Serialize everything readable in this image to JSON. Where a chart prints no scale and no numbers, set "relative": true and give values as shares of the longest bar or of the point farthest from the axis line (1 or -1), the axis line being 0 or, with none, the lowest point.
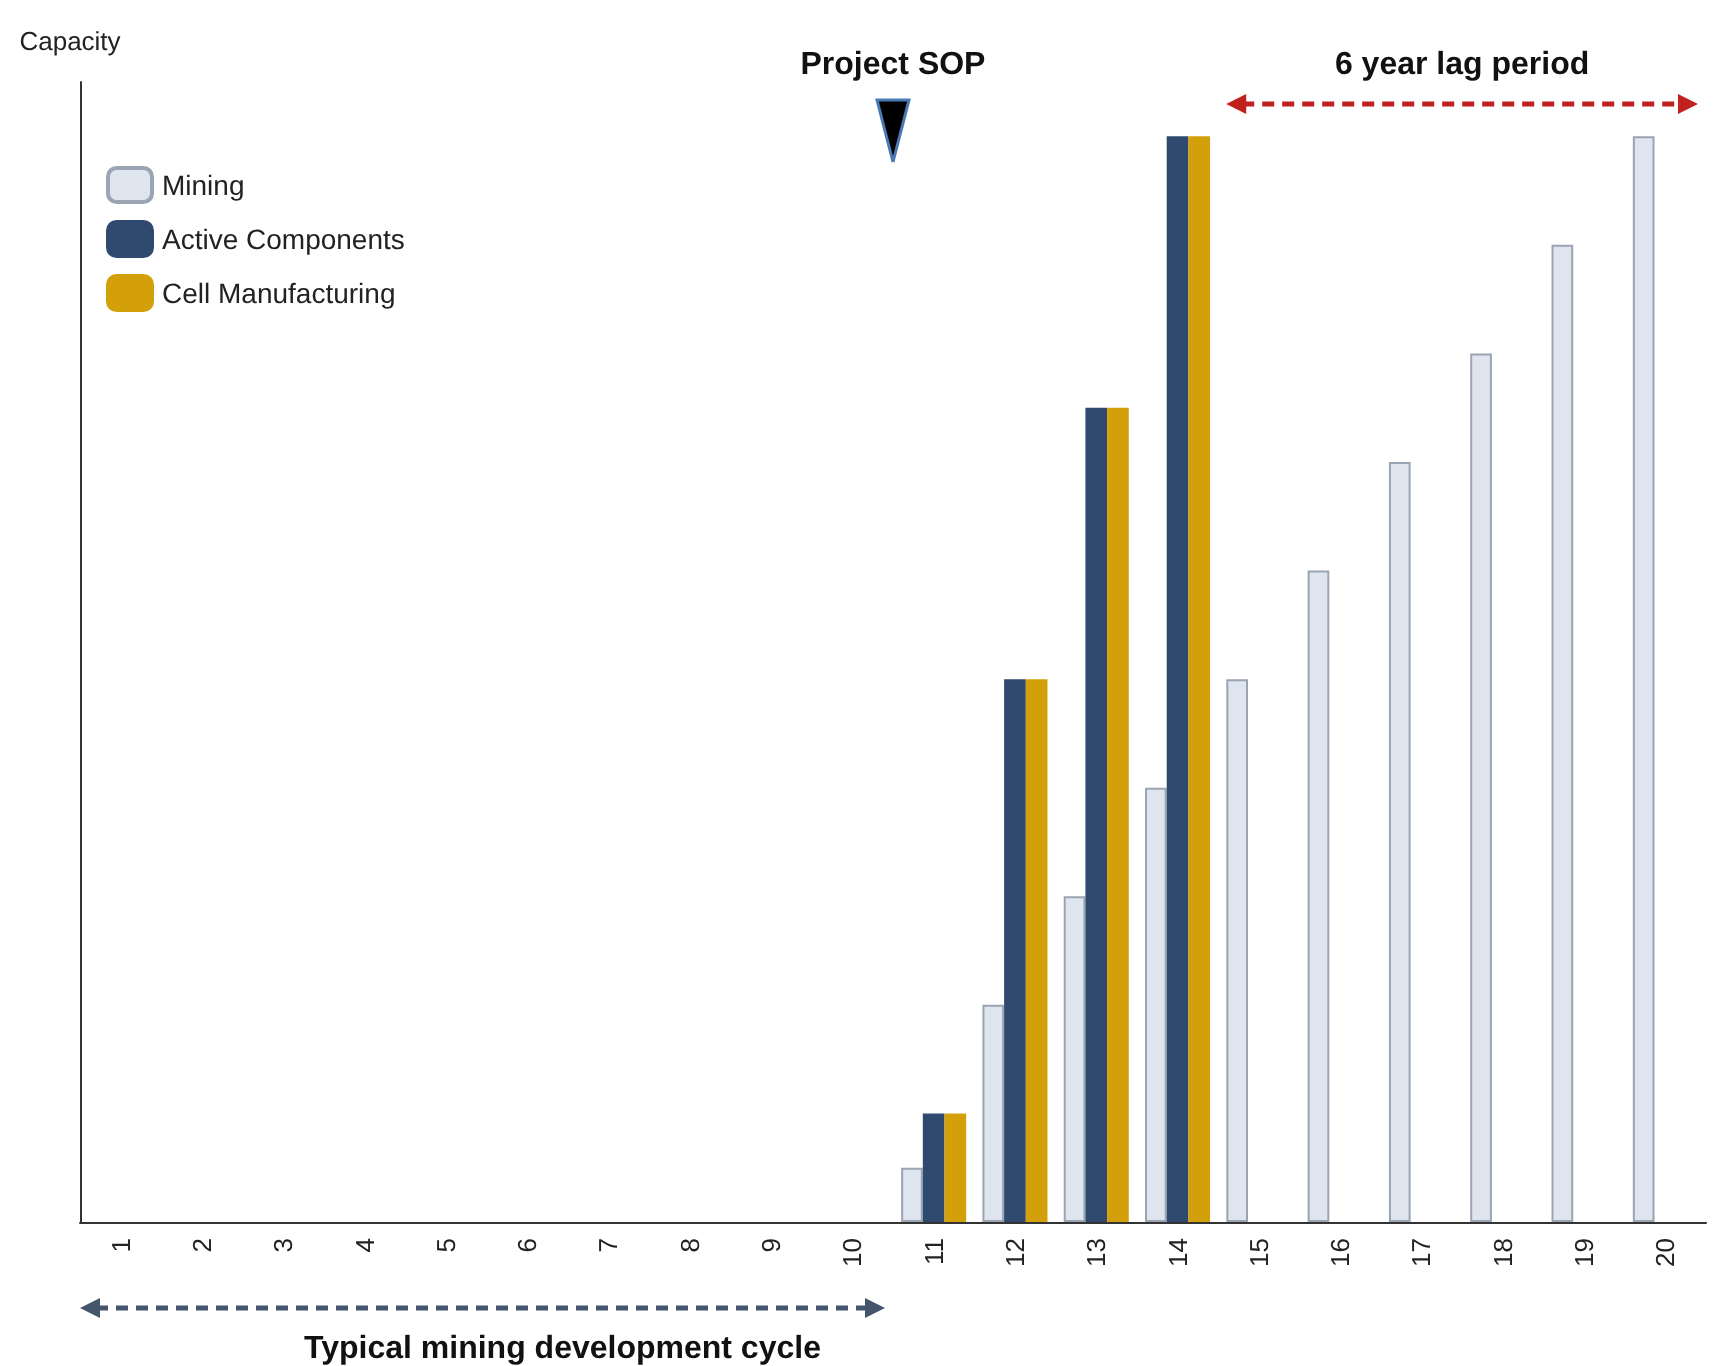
{
  "chart_data": {
    "type": "bar",
    "relative": true,
    "ylabel": "Capacity",
    "legend": "top left",
    "grid": false,
    "categories": [
      "1",
      "2",
      "3",
      "4",
      "5",
      "6",
      "7",
      "8",
      "9",
      "10",
      "11",
      "12",
      "13",
      "14",
      "15",
      "16",
      "17",
      "18",
      "19",
      "20"
    ],
    "series": [
      {
        "name": "Mining",
        "color": "#dfe5ef",
        "values": [
          null,
          null,
          null,
          null,
          null,
          null,
          null,
          null,
          null,
          null,
          0.05,
          0.2,
          0.3,
          0.4,
          0.5,
          0.6,
          0.7,
          0.8,
          0.9,
          1.0
        ]
      },
      {
        "name": "Active Components",
        "color": "#2f4a6e",
        "values": [
          null,
          null,
          null,
          null,
          null,
          null,
          null,
          null,
          null,
          null,
          0.1,
          0.5,
          0.75,
          1.0,
          null,
          null,
          null,
          null,
          null,
          null
        ]
      },
      {
        "name": "Cell Manufacturing",
        "color": "#d4a00a",
        "values": [
          null,
          null,
          null,
          null,
          null,
          null,
          null,
          null,
          null,
          null,
          0.1,
          0.5,
          0.75,
          1.0,
          null,
          null,
          null,
          null,
          null,
          null
        ]
      }
    ],
    "annotations": [
      "Project SOP",
      "6 year lag period",
      "Typical mining development cycle"
    ]
  }
}
